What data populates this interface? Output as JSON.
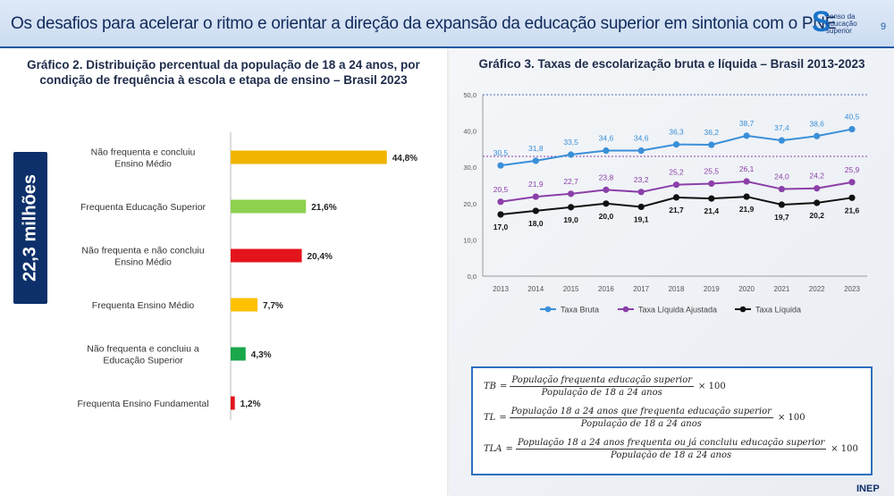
{
  "header": {
    "title": "Os desafios para acelerar o ritmo e orientar a direção da expansão da educação superior em sintonia com o PNE",
    "logo_line1": "censo da",
    "logo_line2": "educação",
    "logo_line3": "superior",
    "page_number": "9"
  },
  "left": {
    "vertical_label": "22,3 milhões"
  },
  "colors": {
    "header_accent": "#1f5aa6",
    "bar_orange": "#f0b400",
    "bar_green_light": "#8dd14f",
    "bar_red": "#e3141b",
    "bar_yellow": "#ffc000",
    "bar_green": "#1aa64a",
    "series_bruta": "#3a8fd8",
    "series_ajustada": "#8b3fa8",
    "series_liquida": "#111111"
  },
  "formulas": {
    "tb": {
      "name": "TB",
      "num": "População frequenta educação superior",
      "den": "População de 18 a 24 anos",
      "mult": "× 100"
    },
    "tl": {
      "name": "TL",
      "num": "População 18 a 24 anos que frequenta educação superior",
      "den": "População de 18 a 24 anos",
      "mult": "× 100"
    },
    "tla": {
      "name": "TLA",
      "num": "População 18 a 24 anos frequenta ou já concluiu educação superior",
      "den": "População de 18 a 24 anos",
      "mult": "× 100"
    }
  },
  "footer": {
    "logo": "INEP"
  },
  "chart_data": [
    {
      "type": "bar",
      "orientation": "horizontal",
      "title": "Gráfico 2. Distribuição percentual da população de 18 a 24 anos, por condição de frequência à escola e etapa de ensino – Brasil 2023",
      "categories": [
        "Não frequenta e concluiu Ensino Médio",
        "Frequenta Educação Superior",
        "Não frequenta e não concluiu Ensino Médio",
        "Frequenta Ensino Médio",
        "Não frequenta e concluiu a Educação Superior",
        "Frequenta Ensino Fundamental"
      ],
      "values": [
        44.8,
        21.6,
        20.4,
        7.7,
        4.3,
        1.2
      ],
      "value_labels": [
        "44,8%",
        "21,6%",
        "20,4%",
        "7,7%",
        "4,3%",
        "1,2%"
      ],
      "bar_colors": [
        "#f0b400",
        "#8dd14f",
        "#e3141b",
        "#ffc000",
        "#1aa64a",
        "#e3141b"
      ]
    },
    {
      "type": "line",
      "title": "Gráfico 3. Taxas de escolarização bruta e líquida – Brasil 2013-2023",
      "x": [
        "2013",
        "2014",
        "2015",
        "2016",
        "2017",
        "2018",
        "2019",
        "2020",
        "2021",
        "2022",
        "2023"
      ],
      "ylim": [
        0,
        50
      ],
      "yticks": [
        "0,0",
        "10,0",
        "20,0",
        "30,0",
        "40,0",
        "50,0"
      ],
      "grid": false,
      "legend": "bottom",
      "reference_lines": [
        50,
        33
      ],
      "series": [
        {
          "name": "Taxa Bruta",
          "color": "#3a8fd8",
          "values": [
            30.5,
            31.8,
            33.5,
            34.6,
            34.6,
            36.3,
            36.2,
            38.7,
            37.4,
            38.6,
            40.5
          ],
          "labels": [
            "30,5",
            "31,8",
            "33,5",
            "34,6",
            "34,6",
            "36,3",
            "36,2",
            "38,7",
            "37,4",
            "38,6",
            "40,5"
          ]
        },
        {
          "name": "Taxa Líquida Ajustada",
          "color": "#8b3fa8",
          "values": [
            20.5,
            21.9,
            22.7,
            23.8,
            23.2,
            25.2,
            25.5,
            26.1,
            24.0,
            24.2,
            25.9
          ],
          "labels": [
            "20,5",
            "21,9",
            "22,7",
            "23,8",
            "23,2",
            "25,2",
            "25,5",
            "26,1",
            "24,0",
            "24,2",
            "25,9"
          ]
        },
        {
          "name": "Taxa Líquida",
          "color": "#111111",
          "values": [
            17.0,
            18.0,
            19.0,
            20.0,
            19.1,
            21.7,
            21.4,
            21.9,
            19.7,
            20.2,
            21.6
          ],
          "labels": [
            "17,0",
            "18,0",
            "19,0",
            "20,0",
            "19,1",
            "21,7",
            "21,4",
            "21,9",
            "19,7",
            "20,2",
            "21,6"
          ]
        }
      ]
    }
  ]
}
